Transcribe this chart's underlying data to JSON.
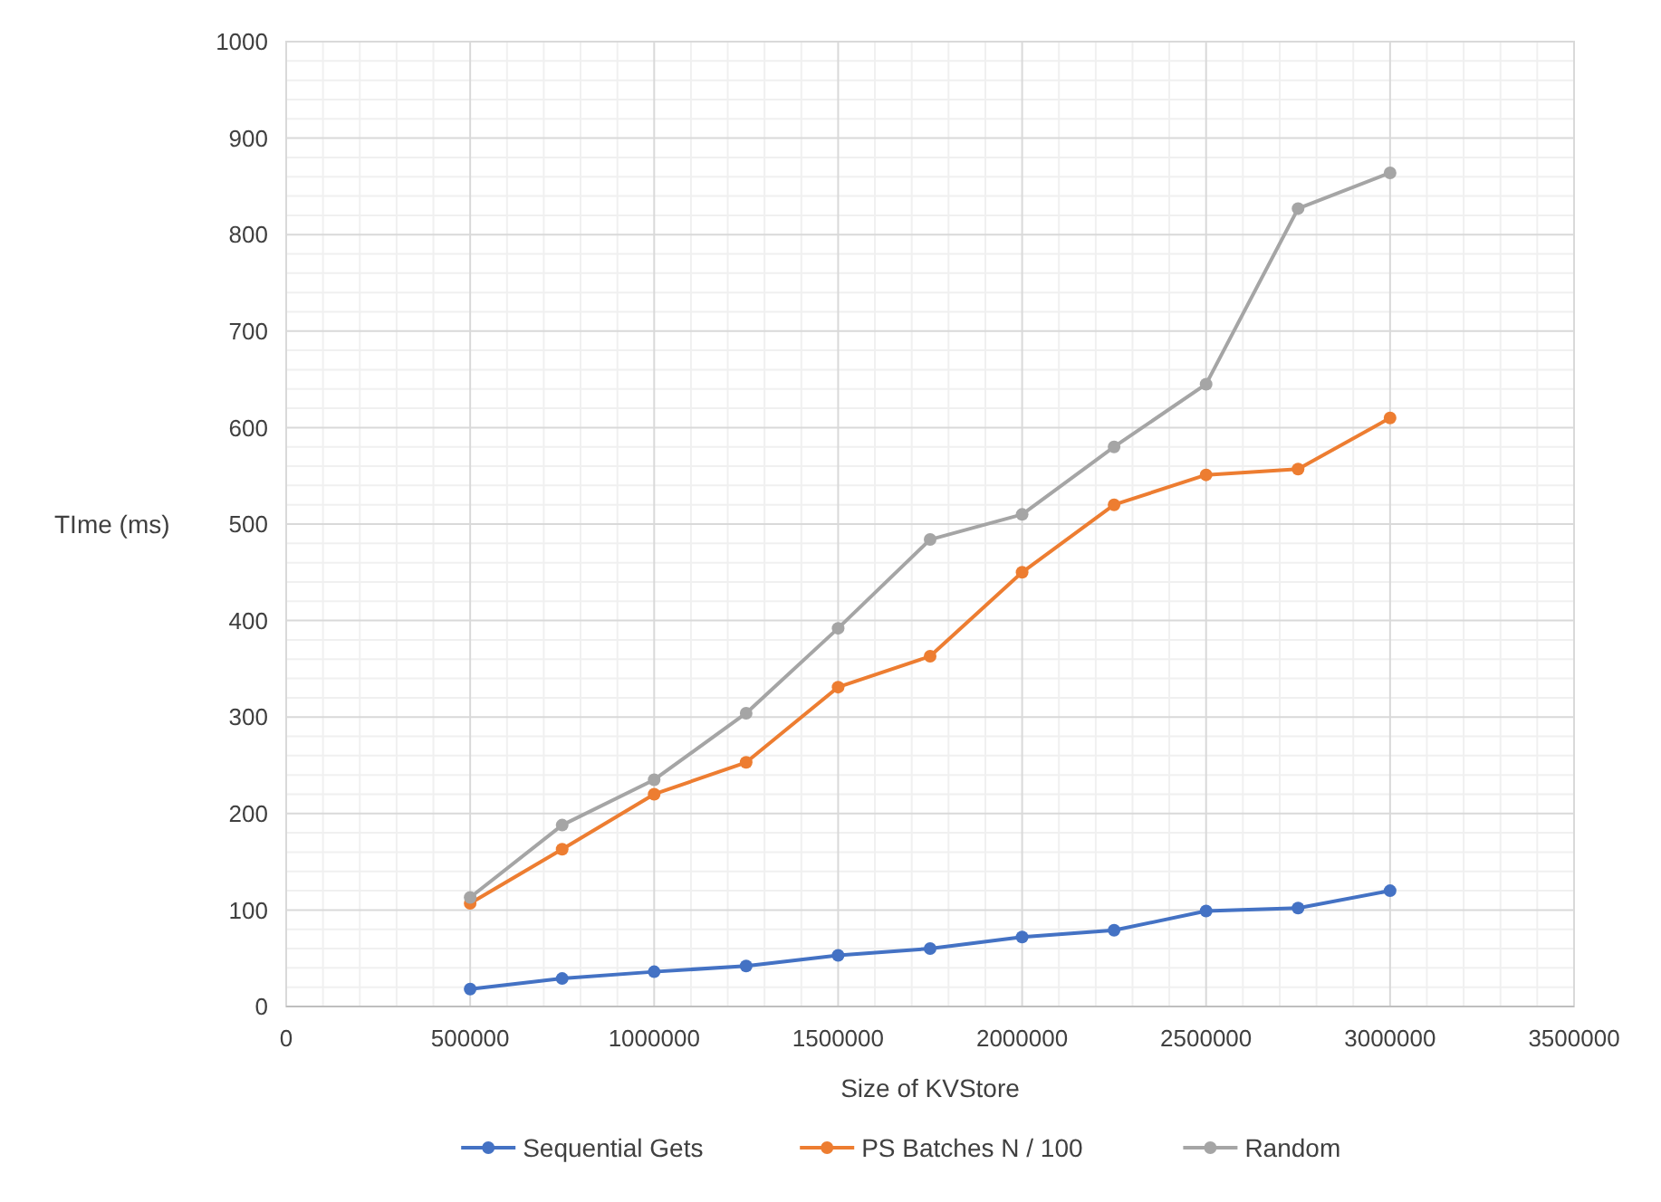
{
  "chart_data": {
    "type": "line",
    "xlabel": "Size of KVStore",
    "ylabel": "TIme (ms)",
    "x": [
      500000,
      750000,
      1000000,
      1250000,
      1500000,
      1750000,
      2000000,
      2250000,
      2500000,
      2750000,
      3000000
    ],
    "xlim": [
      0,
      3500000
    ],
    "xticks": [
      0,
      500000,
      1000000,
      1500000,
      2000000,
      2500000,
      3000000,
      3500000
    ],
    "ylim": [
      0,
      1000
    ],
    "yticks": [
      0,
      100,
      200,
      300,
      400,
      500,
      600,
      700,
      800,
      900,
      1000
    ],
    "grid": true,
    "legend": "bottom",
    "marker": "circle",
    "line_style": "solid",
    "series": [
      {
        "name": "Sequential Gets",
        "color": "#4472c4",
        "values": [
          18,
          29,
          36,
          42,
          53,
          60,
          72,
          79,
          99,
          102,
          120
        ]
      },
      {
        "name": "PS Batches N / 100",
        "color": "#ed7d31",
        "values": [
          107,
          163,
          220,
          253,
          331,
          363,
          450,
          520,
          551,
          557,
          610
        ]
      },
      {
        "name": "Random",
        "color": "#a5a5a5",
        "values": [
          113,
          188,
          235,
          304,
          392,
          484,
          510,
          580,
          645,
          827,
          864
        ]
      }
    ]
  }
}
